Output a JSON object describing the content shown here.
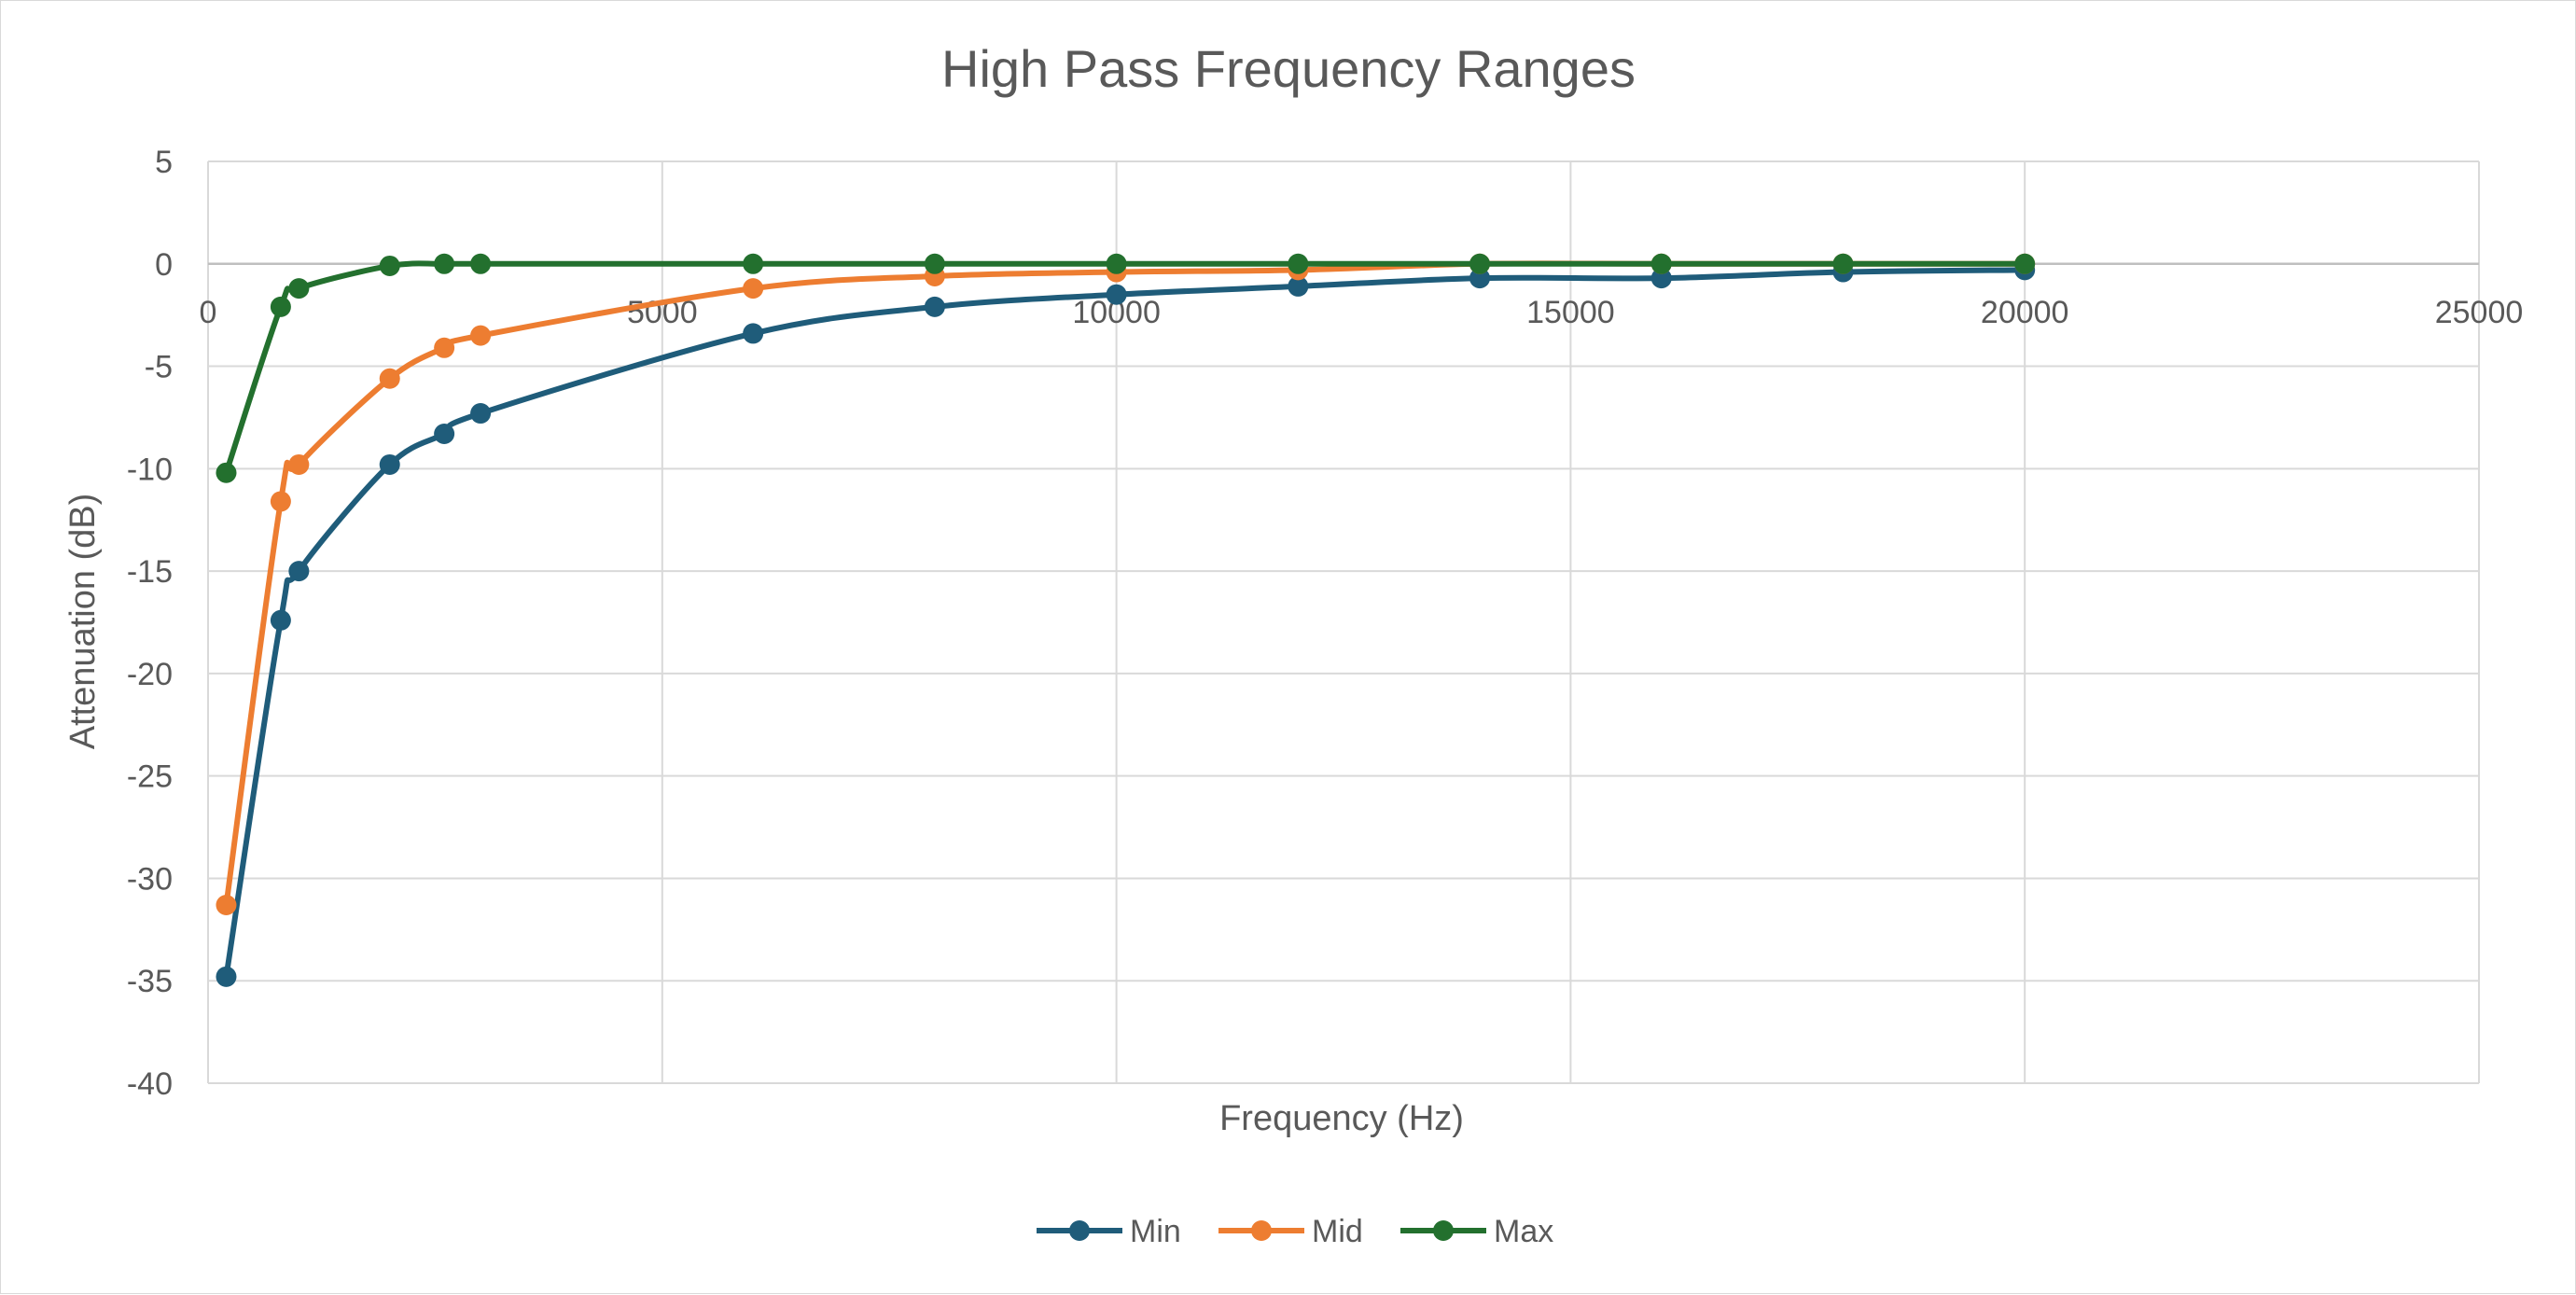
{
  "chart_data": {
    "type": "scatter",
    "title": "High Pass Frequency Ranges",
    "xlabel": "Frequency (Hz)",
    "ylabel": "Attenuation (dB)",
    "xlim": [
      0,
      25000
    ],
    "ylim": [
      -40,
      5
    ],
    "xticks": [
      0,
      5000,
      10000,
      15000,
      20000,
      25000
    ],
    "yticks": [
      5,
      0,
      -5,
      -10,
      -15,
      -20,
      -25,
      -30,
      -35,
      -40
    ],
    "xtick_labels": [
      "0",
      "5000",
      "10000",
      "15000",
      "20000",
      "25000"
    ],
    "ytick_labels": [
      "5",
      "0",
      "-5",
      "-10",
      "-15",
      "-20",
      "-25",
      "-30",
      "-35",
      "-40"
    ],
    "grid": true,
    "smooth_lines": true,
    "markers": true,
    "legend_position": "bottom",
    "x": [
      200,
      800,
      1000,
      2000,
      2600,
      3000,
      6000,
      8000,
      10000,
      12000,
      14000,
      16000,
      18000,
      20000
    ],
    "series": [
      {
        "name": "Min",
        "color": "#1f5c7a",
        "values": [
          -34.8,
          -17.4,
          -15.0,
          -9.8,
          -8.3,
          -7.3,
          -3.4,
          -2.1,
          -1.5,
          -1.1,
          -0.7,
          -0.7,
          -0.4,
          -0.3
        ]
      },
      {
        "name": "Mid",
        "color": "#ed7d31",
        "values": [
          -31.3,
          -11.6,
          -9.8,
          -5.6,
          -4.1,
          -3.5,
          -1.2,
          -0.6,
          -0.4,
          -0.3,
          0.0,
          0.0,
          0.0,
          0.0
        ]
      },
      {
        "name": "Max",
        "color": "#23702e",
        "values": [
          -10.2,
          -2.1,
          -1.2,
          -0.1,
          0.0,
          0.0,
          0.0,
          0.0,
          0.0,
          0.0,
          0.0,
          0.0,
          0.0,
          0.0
        ]
      }
    ]
  }
}
